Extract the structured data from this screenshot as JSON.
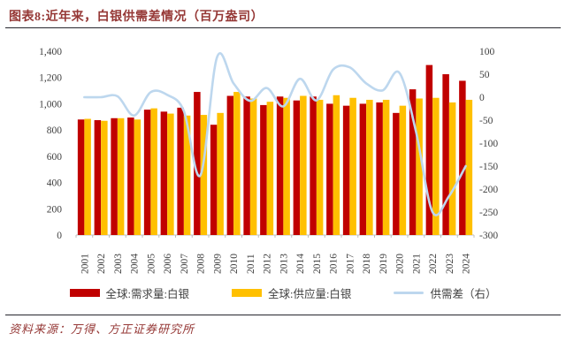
{
  "header": {
    "title": "图表8:近年来，白银供需差情况（百万盎司）"
  },
  "footer": {
    "source": "资料来源：万得、方正证券研究所"
  },
  "legend": [
    {
      "label": "全球:需求量:白银",
      "type": "bar",
      "color": "#C00000"
    },
    {
      "label": "全球:供应量:白银",
      "type": "bar",
      "color": "#FFC000"
    },
    {
      "label": "供需差（右）",
      "type": "line",
      "color": "#BDD7EE"
    }
  ],
  "chart_data": {
    "type": "combo-bar-line",
    "title": "近年来，白银供需差情况（百万盎司）",
    "categories": [
      "2001",
      "2002",
      "2003",
      "2004",
      "2005",
      "2006",
      "2007",
      "2008",
      "2009",
      "2010",
      "2011",
      "2012",
      "2013",
      "2014",
      "2015",
      "2016",
      "2017",
      "2018",
      "2019",
      "2020",
      "2021",
      "2022",
      "2023",
      "2024"
    ],
    "series": [
      {
        "name": "全球:需求量:白银",
        "type": "bar",
        "axis": "left",
        "color": "#C00000",
        "values": [
          880,
          875,
          890,
          895,
          955,
          940,
          970,
          1090,
          840,
          1060,
          1055,
          990,
          1055,
          1025,
          1055,
          1000,
          985,
          1000,
          1010,
          930,
          1110,
          1295,
          1225,
          1175
        ]
      },
      {
        "name": "全球:供应量:白银",
        "type": "bar",
        "axis": "left",
        "color": "#FFC000",
        "values": [
          885,
          870,
          890,
          880,
          965,
          925,
          910,
          915,
          930,
          1090,
          1040,
          1015,
          1045,
          1060,
          1030,
          1065,
          1045,
          1030,
          1030,
          985,
          1040,
          1045,
          1010,
          1030
        ]
      },
      {
        "name": "供需差（右）",
        "type": "line",
        "axis": "right",
        "color": "#BDD7EE",
        "values": [
          0,
          0,
          2,
          -40,
          11,
          5,
          -30,
          -170,
          87,
          30,
          -8,
          20,
          -20,
          40,
          -7,
          60,
          65,
          30,
          15,
          53,
          -75,
          -250,
          -215,
          -150
        ]
      }
    ],
    "left_axis": {
      "min": 0,
      "max": 1400,
      "step": 200,
      "tick_labels": [
        "0",
        "200",
        "400",
        "600",
        "800",
        "1,000",
        "1,200",
        "1,400"
      ]
    },
    "right_axis": {
      "min": -300,
      "max": 100,
      "step": 50,
      "tick_labels": [
        "-300",
        "-250",
        "-200",
        "-150",
        "-100",
        "-50",
        "0",
        "50",
        "100"
      ]
    },
    "grid": false,
    "legend_position": "bottom",
    "axis_text_color": "#404040",
    "baseline_color": "#BFBFBF"
  }
}
